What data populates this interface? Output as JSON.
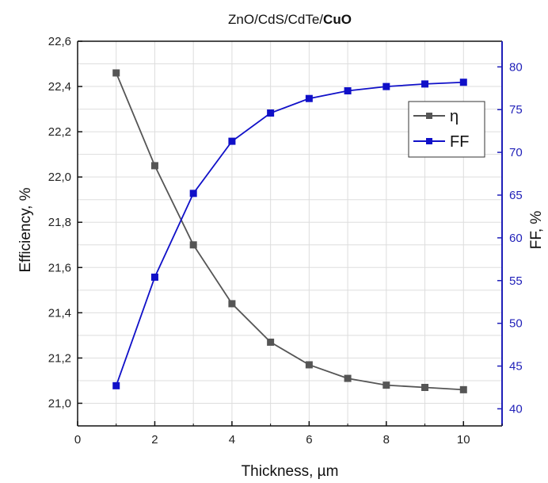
{
  "chart_data": {
    "type": "line",
    "title_plain": "ZnO/CdS/CdTe/",
    "title_bold": "CuO",
    "xlabel": "Thickness, µm",
    "ylabel_left": "Efficiency, %",
    "ylabel_right": "FF, %",
    "xlim": [
      0,
      11
    ],
    "ylim_left": [
      20.9,
      22.6
    ],
    "ylim_right": [
      38,
      83
    ],
    "x_ticks": [
      "0",
      "2",
      "4",
      "6",
      "8",
      "10"
    ],
    "y_left_ticks": [
      "21,0",
      "21,2",
      "21,4",
      "21,6",
      "21,8",
      "22,0",
      "22,2",
      "22,4",
      "22,6"
    ],
    "y_right_ticks": [
      "40",
      "45",
      "50",
      "55",
      "60",
      "65",
      "70",
      "75",
      "80"
    ],
    "grid": true,
    "legend_position": "top-right inside plot",
    "x": [
      1,
      2,
      3,
      4,
      5,
      6,
      7,
      8,
      9,
      10
    ],
    "series": [
      {
        "name": "η",
        "axis": "left",
        "color": "#555555",
        "marker": "square",
        "values": [
          22.46,
          22.05,
          21.7,
          21.44,
          21.27,
          21.17,
          21.11,
          21.08,
          21.07,
          21.06
        ]
      },
      {
        "name": "FF",
        "axis": "right",
        "color": "#1010c8",
        "marker": "square",
        "values": [
          42.7,
          55.4,
          65.2,
          71.3,
          74.6,
          76.3,
          77.2,
          77.7,
          78.0,
          78.2
        ]
      }
    ],
    "colors": {
      "right_axis": "#1f1fb8",
      "left_axis": "#111111",
      "grid": "#dddddd"
    }
  }
}
